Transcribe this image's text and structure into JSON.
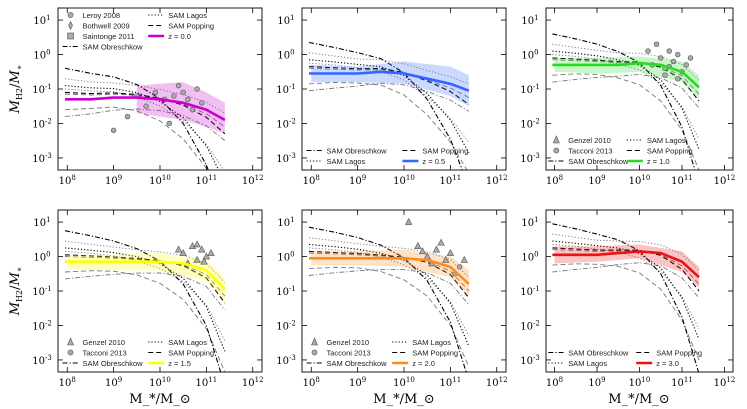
{
  "figure": {
    "ylabel": "M_H2/M_*",
    "xlabel": "M_*/M_⊙",
    "xticks": [
      8,
      9,
      10,
      11,
      12
    ],
    "yticks": [
      -3,
      -2,
      -1,
      0,
      1
    ]
  },
  "chart_data": [
    {
      "type": "line",
      "panel": 0,
      "redshift_label": "z = 0.0",
      "color": "#cc00cc",
      "xlim": [
        7.8,
        12.2
      ],
      "ylim": [
        -3.35,
        1.35
      ],
      "median": {
        "x": [
          7.95,
          8.5,
          9.0,
          9.5,
          10.0,
          10.5,
          11.0,
          11.4
        ],
        "y": [
          -1.3,
          -1.3,
          -1.25,
          -1.25,
          -1.3,
          -1.4,
          -1.6,
          -1.9
        ]
      },
      "band": {
        "x": [
          9.5,
          10.0,
          10.5,
          11.0,
          11.4
        ],
        "upper": [
          -0.9,
          -0.85,
          -0.8,
          -1.1,
          -1.4
        ],
        "lower": [
          -1.7,
          -1.8,
          -1.9,
          -2.1,
          -2.3
        ]
      },
      "legend": [
        {
          "label": "Leroy 2008",
          "kind": "circle"
        },
        {
          "label": "SAM Lagos",
          "kind": "dotted"
        },
        {
          "label": "Bothwell 2009",
          "kind": "diamond"
        },
        {
          "label": "SAM Popping",
          "kind": "dashed"
        },
        {
          "label": "Saintonge 2011",
          "kind": "square"
        },
        {
          "label": "z = 0.0",
          "kind": "solid"
        },
        {
          "label": "SAM Obreschkow",
          "kind": "dashdot"
        }
      ],
      "obs_points": [
        [
          9.7,
          -1.5
        ],
        [
          9.9,
          -1.1
        ],
        [
          10.1,
          -1.3
        ],
        [
          10.3,
          -1.2
        ],
        [
          10.5,
          -1.1
        ],
        [
          10.6,
          -1.3
        ],
        [
          10.8,
          -1.0
        ],
        [
          10.9,
          -1.4
        ],
        [
          9.3,
          -1.8
        ],
        [
          9.0,
          -2.2
        ],
        [
          10.2,
          -2.0
        ],
        [
          10.7,
          -1.6
        ],
        [
          9.5,
          -1.2
        ],
        [
          10.4,
          -0.9
        ]
      ]
    },
    {
      "type": "line",
      "panel": 1,
      "redshift_label": "z = 0.5",
      "color": "#3366ff",
      "xlim": [
        7.8,
        12.2
      ],
      "ylim": [
        -3.35,
        1.35
      ],
      "median": {
        "x": [
          7.95,
          8.5,
          9.0,
          9.5,
          10.0,
          10.5,
          11.0,
          11.4
        ],
        "y": [
          -0.55,
          -0.55,
          -0.55,
          -0.5,
          -0.55,
          -0.7,
          -0.85,
          -1.05
        ]
      },
      "band": {
        "x": [
          8.0,
          9.0,
          10.0,
          11.0,
          11.4
        ],
        "upper": [
          -0.3,
          -0.35,
          -0.2,
          -0.35,
          -0.6
        ],
        "lower": [
          -0.8,
          -0.8,
          -0.85,
          -1.2,
          -1.5
        ]
      },
      "legend": [
        {
          "label": "SAM Obreschkow",
          "kind": "dashdot"
        },
        {
          "label": "SAM Popping",
          "kind": "dashed"
        },
        {
          "label": "SAM Lagos",
          "kind": "dotted"
        },
        {
          "label": "z = 0.5",
          "kind": "solid"
        }
      ],
      "obs_points": []
    },
    {
      "type": "line",
      "panel": 2,
      "redshift_label": "z = 1.0",
      "color": "#22dd22",
      "xlim": [
        7.8,
        12.2
      ],
      "ylim": [
        -3.35,
        1.35
      ],
      "median": {
        "x": [
          7.95,
          8.5,
          9.0,
          9.5,
          10.0,
          10.5,
          11.0,
          11.4
        ],
        "y": [
          -0.3,
          -0.3,
          -0.3,
          -0.3,
          -0.25,
          -0.3,
          -0.5,
          -0.95
        ]
      },
      "band": {
        "x": [
          8.0,
          9.0,
          10.0,
          11.0,
          11.4
        ],
        "upper": [
          -0.1,
          -0.1,
          -0.05,
          -0.2,
          -0.6
        ],
        "lower": [
          -0.5,
          -0.55,
          -0.5,
          -0.8,
          -1.3
        ]
      },
      "legend": [
        {
          "label": "Genzel 2010",
          "kind": "triangle"
        },
        {
          "label": "SAM Lagos",
          "kind": "dotted"
        },
        {
          "label": "Tacconi 2013",
          "kind": "circle"
        },
        {
          "label": "SAM Popping",
          "kind": "dashed"
        },
        {
          "label": "SAM Obreschkow",
          "kind": "dashdot"
        },
        {
          "label": "z = 1.0",
          "kind": "solid"
        }
      ],
      "obs_points": [
        [
          10.3,
          -0.3
        ],
        [
          10.5,
          -0.1
        ],
        [
          10.6,
          -0.4
        ],
        [
          10.7,
          0.1
        ],
        [
          10.8,
          -0.2
        ],
        [
          10.9,
          0.0
        ],
        [
          11.0,
          -0.5
        ],
        [
          11.1,
          -0.3
        ],
        [
          10.4,
          0.3
        ],
        [
          10.6,
          -0.6
        ],
        [
          10.9,
          -0.7
        ],
        [
          11.2,
          -0.1
        ],
        [
          10.2,
          0.1
        ],
        [
          10.7,
          -0.35
        ]
      ]
    },
    {
      "type": "line",
      "panel": 3,
      "redshift_label": "z = 1.5",
      "color": "#ffff00",
      "xlim": [
        7.8,
        12.2
      ],
      "ylim": [
        -3.35,
        1.35
      ],
      "median": {
        "x": [
          7.95,
          8.5,
          9.0,
          9.5,
          10.0,
          10.5,
          11.0,
          11.4
        ],
        "y": [
          -0.15,
          -0.15,
          -0.15,
          -0.15,
          -0.15,
          -0.2,
          -0.4,
          -0.95
        ]
      },
      "band": {
        "x": [
          8.0,
          9.0,
          10.0,
          11.0,
          11.4
        ],
        "upper": [
          0.05,
          0.05,
          0.1,
          -0.1,
          -0.6
        ],
        "lower": [
          -0.35,
          -0.4,
          -0.4,
          -0.7,
          -1.3
        ]
      },
      "legend": [
        {
          "label": "Genzel 2010",
          "kind": "triangle"
        },
        {
          "label": "SAM Lagos",
          "kind": "dotted"
        },
        {
          "label": "Tacconi 2013",
          "kind": "circle"
        },
        {
          "label": "SAM Popping",
          "kind": "dashed"
        },
        {
          "label": "SAM Obreschkow",
          "kind": "dashdot"
        },
        {
          "label": "z = 1.5",
          "kind": "solid"
        }
      ],
      "obs_points": [
        [
          10.5,
          0.1
        ],
        [
          10.7,
          0.3
        ],
        [
          10.8,
          -0.1
        ],
        [
          10.9,
          0.2
        ],
        [
          11.0,
          0.0
        ],
        [
          10.6,
          -0.2
        ],
        [
          10.4,
          0.2
        ],
        [
          11.1,
          0.1
        ],
        [
          10.8,
          0.35
        ],
        [
          10.95,
          -0.15
        ]
      ]
    },
    {
      "type": "line",
      "panel": 4,
      "redshift_label": "z = 2.0",
      "color": "#ff8c1a",
      "xlim": [
        7.8,
        12.2
      ],
      "ylim": [
        -3.35,
        1.35
      ],
      "median": {
        "x": [
          7.95,
          8.5,
          9.0,
          9.5,
          10.0,
          10.5,
          11.0,
          11.4
        ],
        "y": [
          -0.05,
          -0.05,
          -0.05,
          -0.05,
          -0.05,
          -0.1,
          -0.3,
          -0.8
        ]
      },
      "band": {
        "x": [
          8.0,
          9.0,
          10.0,
          11.0,
          11.4
        ],
        "upper": [
          0.15,
          0.15,
          0.2,
          0.0,
          -0.4
        ],
        "lower": [
          -0.25,
          -0.25,
          -0.3,
          -0.6,
          -1.15
        ]
      },
      "legend": [
        {
          "label": "Genzel 2010",
          "kind": "triangle"
        },
        {
          "label": "SAM Lagos",
          "kind": "dotted"
        },
        {
          "label": "Tacconi 2013",
          "kind": "circle"
        },
        {
          "label": "SAM Popping",
          "kind": "dashed"
        },
        {
          "label": "SAM Obreschkow",
          "kind": "dashdot"
        },
        {
          "label": "z = 2.0",
          "kind": "solid"
        }
      ],
      "obs_points": [
        [
          10.3,
          0.3
        ],
        [
          10.5,
          0.0
        ],
        [
          10.7,
          0.2
        ],
        [
          10.9,
          -0.1
        ],
        [
          11.0,
          0.1
        ],
        [
          11.2,
          -0.3
        ],
        [
          10.8,
          0.4
        ],
        [
          10.6,
          -0.2
        ],
        [
          11.1,
          -0.5
        ],
        [
          10.1,
          1.0
        ],
        [
          10.4,
          0.15
        ],
        [
          11.3,
          -0.1
        ]
      ]
    },
    {
      "type": "line",
      "panel": 5,
      "redshift_label": "z = 3.0",
      "color": "#ee1111",
      "xlim": [
        7.8,
        12.2
      ],
      "ylim": [
        -3.35,
        1.35
      ],
      "median": {
        "x": [
          7.95,
          8.5,
          9.0,
          9.5,
          10.0,
          10.5,
          11.0,
          11.4
        ],
        "y": [
          0.05,
          0.05,
          0.05,
          0.1,
          0.15,
          0.1,
          -0.15,
          -0.6
        ]
      },
      "band": {
        "x": [
          8.0,
          9.0,
          10.0,
          11.0,
          11.4
        ],
        "upper": [
          0.3,
          0.3,
          0.35,
          0.15,
          -0.3
        ],
        "lower": [
          -0.2,
          -0.15,
          -0.05,
          -0.45,
          -0.9
        ]
      },
      "legend": [
        {
          "label": "SAM Obreschkow",
          "kind": "dashdot"
        },
        {
          "label": "SAM Popping",
          "kind": "dashed"
        },
        {
          "label": "SAM Lagos",
          "kind": "dotted"
        },
        {
          "label": "z = 3.0",
          "kind": "solid"
        }
      ],
      "obs_points": []
    }
  ]
}
